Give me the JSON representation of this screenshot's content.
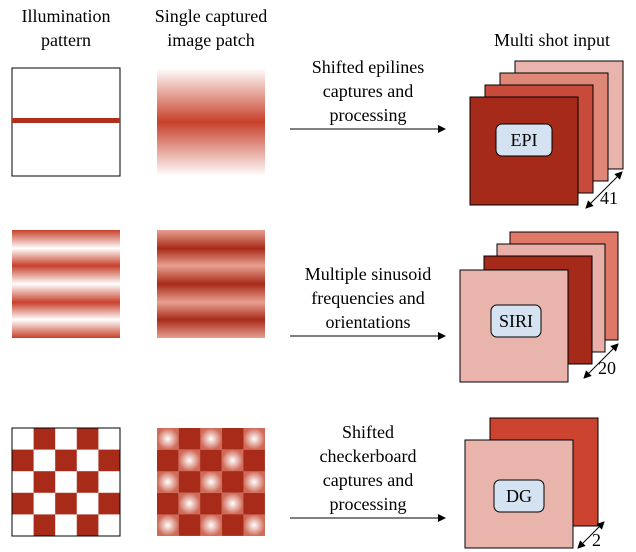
{
  "headers": {
    "illumination": [
      "Illumination",
      "pattern"
    ],
    "patch": [
      "Single captured",
      "image patch"
    ],
    "multi": "Multi shot input"
  },
  "rows": [
    {
      "description": [
        "Shifted epilines",
        "captures and",
        "processing"
      ],
      "label": "EPI",
      "count": 41
    },
    {
      "description": [
        "Multiple sinusoid",
        "frequencies and",
        "orientations"
      ],
      "label": "SIRI",
      "count": 20
    },
    {
      "description": [
        "Shifted",
        "checkerboard",
        "captures and",
        "processing"
      ],
      "label": "DG",
      "count": 2
    }
  ]
}
